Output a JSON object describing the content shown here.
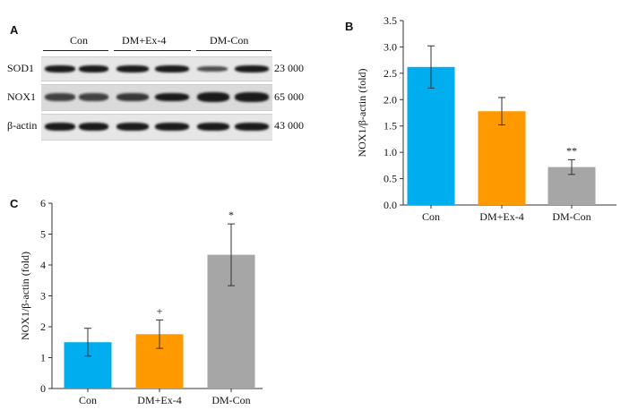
{
  "panels": {
    "a": {
      "letter": "A",
      "groups": [
        "Con",
        "DM+Ex-4",
        "DM-Con"
      ],
      "rows": [
        {
          "label": "SOD1",
          "mw": "23 000"
        },
        {
          "label": "NOX1",
          "mw": "65 000"
        },
        {
          "label": "β-actin",
          "mw": "43 000"
        }
      ]
    },
    "b": {
      "letter": "B"
    },
    "c": {
      "letter": "C"
    }
  },
  "chart_data": [
    {
      "id": "B",
      "type": "bar",
      "categories": [
        "Con",
        "DM+Ex-4",
        "DM-Con"
      ],
      "values": [
        2.62,
        1.78,
        0.72
      ],
      "errors": [
        0.4,
        0.26,
        0.14
      ],
      "annotations": [
        "",
        "",
        "**"
      ],
      "colors": [
        "#00AEEF",
        "#FF9900",
        "#A6A6A6"
      ],
      "ylabel": "NOX1/β-actin (fold)",
      "ylim": [
        0,
        3.5
      ],
      "yticks": [
        "0.0",
        "0.5",
        "1.0",
        "1.5",
        "2.0",
        "2.5",
        "3.0",
        "3.5"
      ],
      "grid": false
    },
    {
      "id": "C",
      "type": "bar",
      "categories": [
        "Con",
        "DM+Ex-4",
        "DM-Con"
      ],
      "values": [
        1.5,
        1.76,
        4.33
      ],
      "errors": [
        0.45,
        0.46,
        1.0
      ],
      "annotations": [
        "",
        "+",
        "*"
      ],
      "colors": [
        "#00AEEF",
        "#FF9900",
        "#A6A6A6"
      ],
      "ylabel": "NOX1/β-actin (fold)",
      "ylim": [
        0,
        6
      ],
      "yticks": [
        "0",
        "1",
        "2",
        "3",
        "4",
        "5",
        "6"
      ],
      "grid": false
    }
  ]
}
